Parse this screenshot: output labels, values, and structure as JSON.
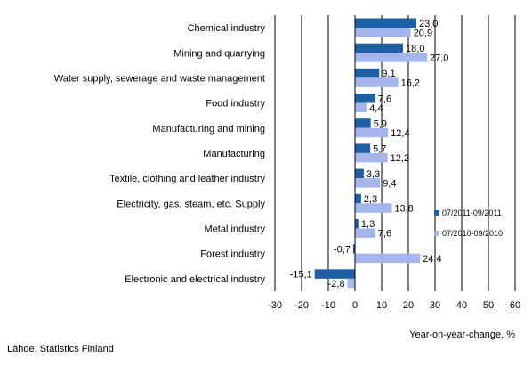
{
  "chart_data": {
    "type": "bar",
    "orientation": "horizontal",
    "categories": [
      "Chemical industry",
      "Mining and quarrying",
      "Water supply, sewerage and waste management",
      "Food industry",
      "Manufacturing and mining",
      "Manufacturing",
      "Textile, clothing and leather industry",
      "Electricity, gas, steam, etc. Supply",
      "Metal industry",
      "Forest industry",
      "Electronic and electrical industry"
    ],
    "series": [
      {
        "name": "07/2011-09/2011",
        "color": "#1f5fa6",
        "values": [
          23.0,
          18.0,
          9.1,
          7.6,
          5.9,
          5.7,
          3.3,
          2.3,
          1.3,
          -0.7,
          -15.1
        ],
        "labels": [
          "23,0",
          "18,0",
          "9,1",
          "7,6",
          "5,9",
          "5,7",
          "3,3",
          "2,3",
          "1,3",
          "-0,7",
          "-15,1"
        ]
      },
      {
        "name": "07/2010-09/2010",
        "color": "#a4b6ec",
        "values": [
          20.9,
          27.0,
          16.2,
          4.4,
          12.4,
          12.2,
          9.4,
          13.8,
          7.6,
          24.4,
          -2.8
        ],
        "labels": [
          "20,9",
          "27,0",
          "16,2",
          "4,4",
          "12,4",
          "12,2",
          "9,4",
          "13,8",
          "7,6",
          "24,4",
          "-2,8"
        ]
      }
    ],
    "xlim": [
      -30,
      60
    ],
    "xticks": [
      -30,
      -20,
      -10,
      0,
      10,
      20,
      30,
      40,
      50,
      60
    ],
    "xlabel": "Year-on-year-change, %",
    "ylabel": "",
    "title": "",
    "grid": "vertical",
    "legend_position": "right"
  },
  "source_note": "Lähde: Statistics Finland"
}
